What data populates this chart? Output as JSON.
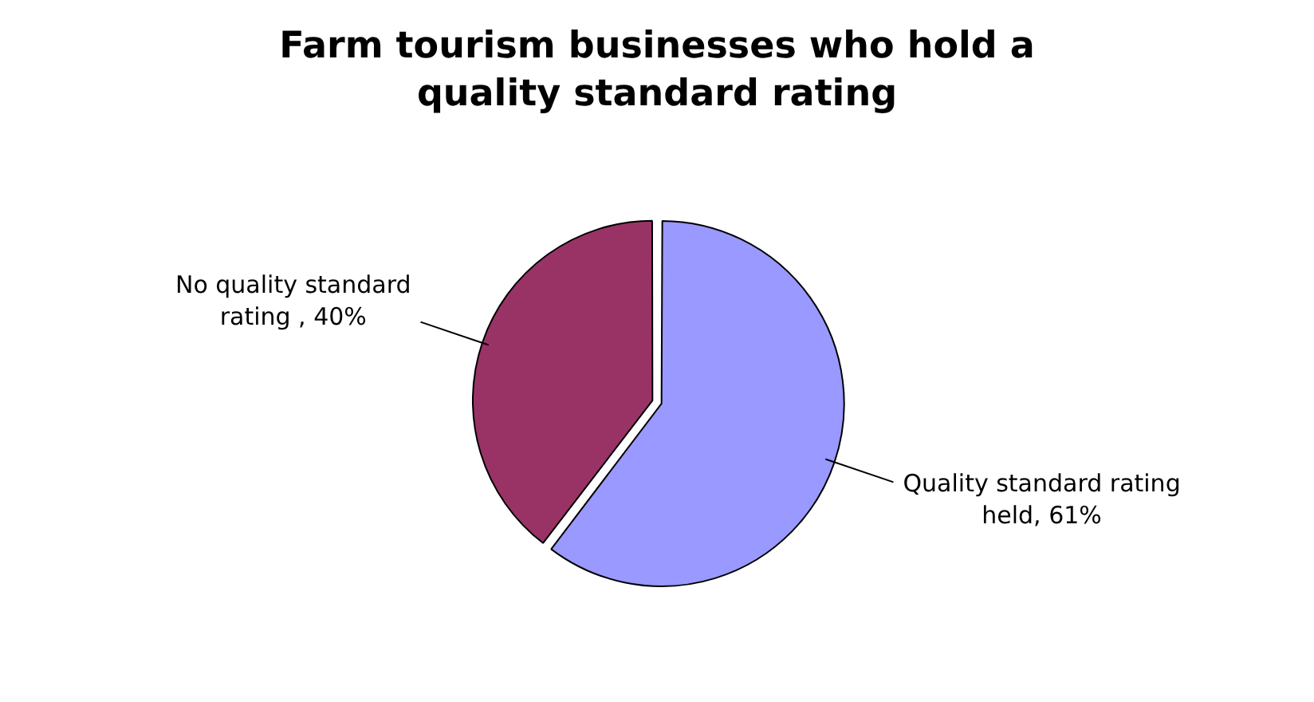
{
  "chart_data": {
    "type": "pie",
    "title": "Farm tourism businesses who hold a quality standard rating",
    "categories": [
      "Quality standard rating held",
      "No quality standard rating "
    ],
    "values": [
      61,
      40
    ],
    "colors": [
      "#9999ff",
      "#993366"
    ],
    "value_labels": [
      "61%",
      "40%"
    ],
    "legend": false
  }
}
